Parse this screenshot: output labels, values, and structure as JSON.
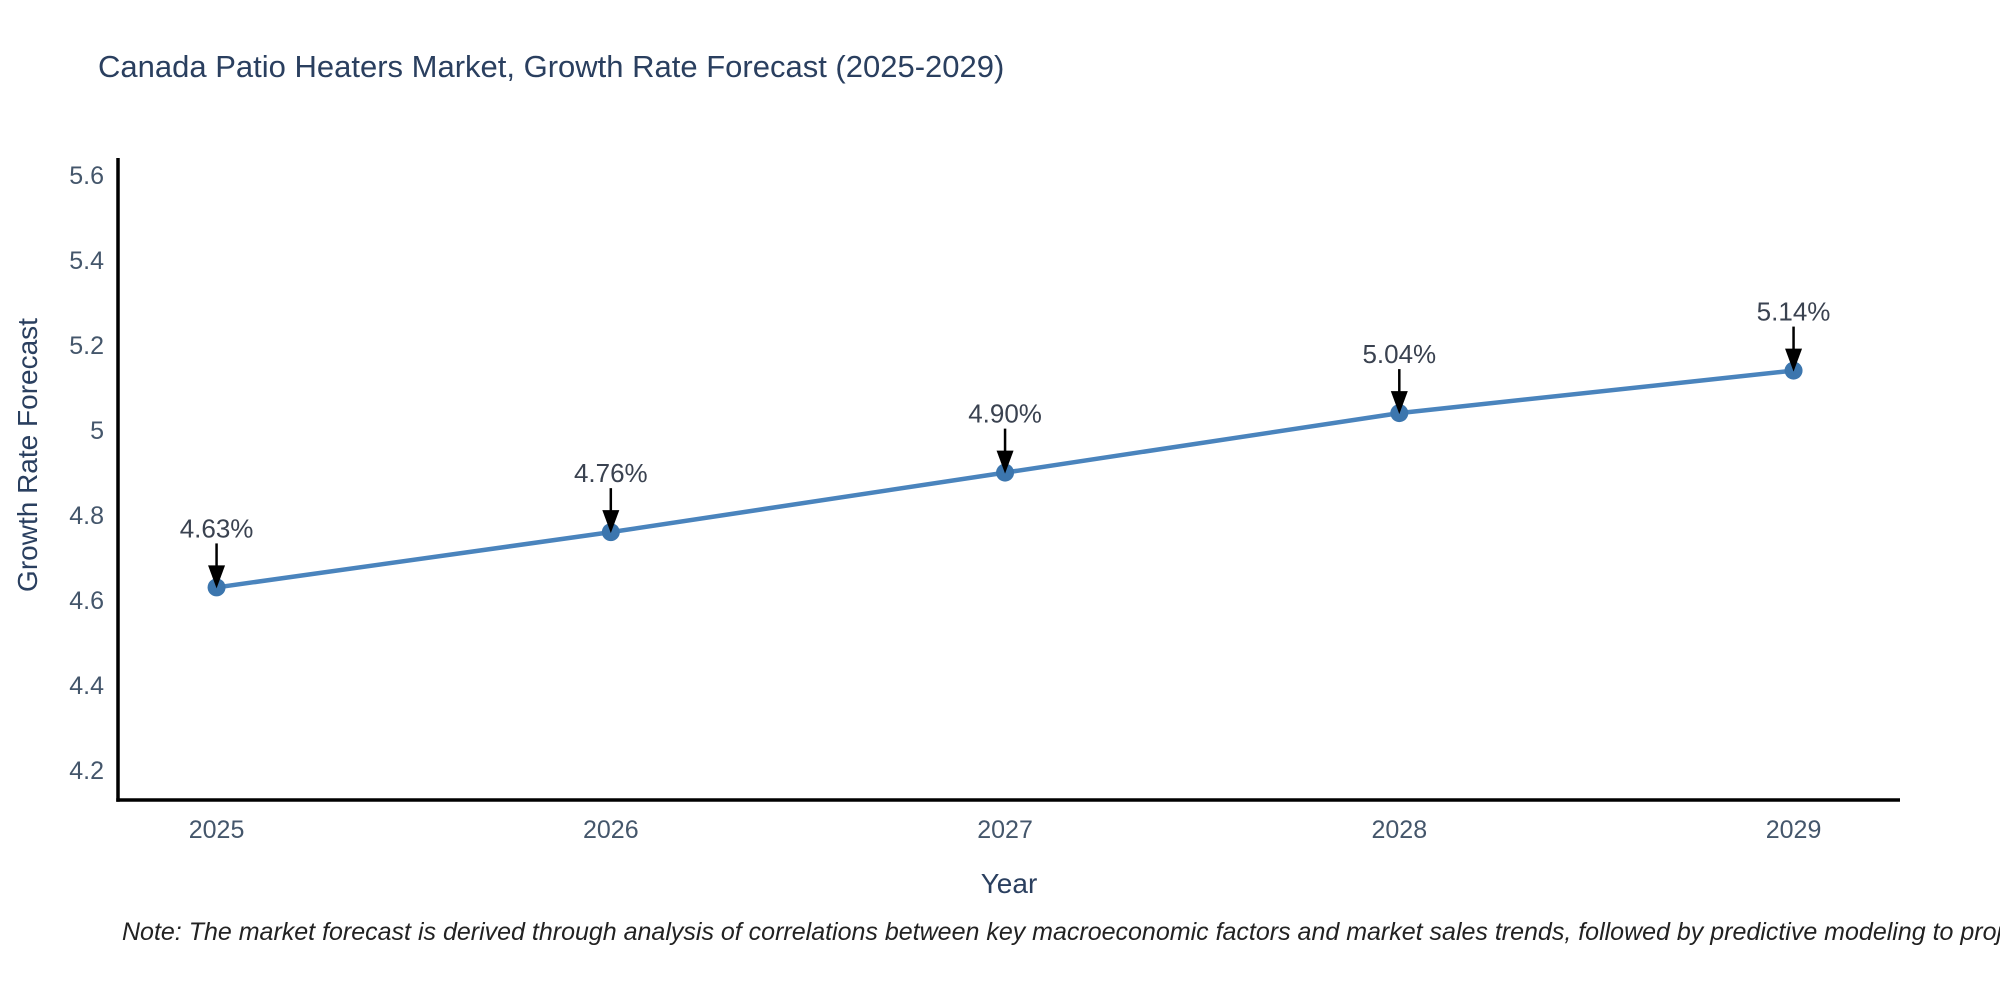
{
  "chart_data": {
    "type": "line",
    "title": "Canada Patio Heaters Market, Growth Rate Forecast (2025-2029)",
    "xlabel": "Year",
    "ylabel": "Growth Rate Forecast",
    "x": [
      2025,
      2026,
      2027,
      2028,
      2029
    ],
    "series": [
      {
        "name": "Growth Rate Forecast",
        "values": [
          4.63,
          4.76,
          4.9,
          5.04,
          5.14
        ]
      }
    ],
    "point_labels": [
      "4.63%",
      "4.76%",
      "4.90%",
      "5.04%",
      "5.14%"
    ],
    "xticks": [
      2025,
      2026,
      2027,
      2028,
      2029
    ],
    "xtick_labels": [
      "2025",
      "2026",
      "2027",
      "2028",
      "2029"
    ],
    "yticks": [
      4.2,
      4.4,
      4.6,
      4.8,
      5.0,
      5.2,
      5.4,
      5.6
    ],
    "ytick_labels": [
      "4.2",
      "4.4",
      "4.6",
      "4.8",
      "5",
      "5.2",
      "5.4",
      "5.6"
    ],
    "xlim": [
      2024.75,
      2029.27
    ],
    "ylim": [
      4.13,
      5.64
    ],
    "grid": false,
    "legend_position": "none",
    "colors": {
      "line": "#4a84bd",
      "marker": "#3c76ae",
      "axis": "#000000",
      "annotation_arrow": "#000000",
      "annotation_text": "#3a4250",
      "title": "#2a3f5f",
      "tick": "#44566b",
      "background": "#ffffff"
    },
    "note": "Note: The market forecast is derived through analysis of correlations between key macroeconomic factors and market sales trends, followed by predictive modeling to project future sales"
  }
}
